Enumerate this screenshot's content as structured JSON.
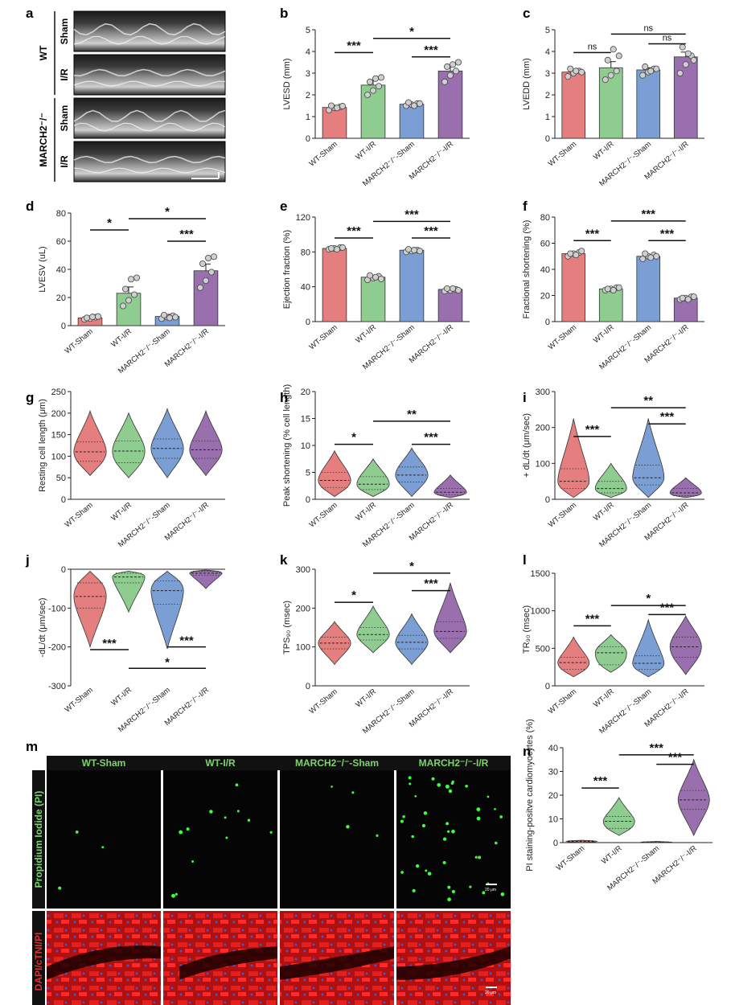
{
  "colors": {
    "sham": "#e57f7f",
    "ir": "#8fcc8f",
    "march_sham": "#7b9fd4",
    "march_ir": "#9a6fae",
    "image_label": "#7cd46d"
  },
  "groups": [
    "WT-Sham",
    "WT-I/R",
    "MARCH2⁻/⁻-Sham",
    "MARCH2⁻/⁻-I/R"
  ],
  "panel_a": {
    "label": "a",
    "row_labels": [
      {
        "group": "WT",
        "sub": "Sham"
      },
      {
        "group": "WT",
        "sub": "I/R"
      },
      {
        "group": "MARCH2⁻/⁻",
        "sub": "Sham"
      },
      {
        "group": "MARCH2⁻/⁻",
        "sub": "I/R"
      }
    ],
    "group_labels": [
      "WT",
      "MARCH2⁻/⁻"
    ]
  },
  "panel_m": {
    "label": "m",
    "column_titles": [
      "WT-Sham",
      "WT-I/R",
      "MARCH2⁻/⁻-Sham",
      "MARCH2⁻/⁻-I/R"
    ],
    "row1_label": "Propidium Iodide (PI)",
    "row2_label": "DAPI/cTNI/PI",
    "scale_text": "20 μm"
  },
  "chart_data": [
    {
      "id": "b",
      "type": "bar",
      "ylabel": "LVESD (mm)",
      "ylim": [
        0,
        5
      ],
      "yticks": [
        0,
        1,
        2,
        3,
        4,
        5
      ],
      "categories": [
        "WT-Sham",
        "WT-I/R",
        "MARCH2⁻/⁻-Sham",
        "MARCH2⁻/⁻-I/R"
      ],
      "values": [
        1.42,
        2.45,
        1.57,
        3.1
      ],
      "errors": [
        0.06,
        0.22,
        0.06,
        0.2
      ],
      "points": [
        [
          1.3,
          1.4,
          1.45,
          1.5,
          1.4,
          1.48
        ],
        [
          2.0,
          2.2,
          2.4,
          2.6,
          2.75,
          2.8
        ],
        [
          1.5,
          1.55,
          1.6,
          1.65,
          1.5,
          1.6
        ],
        [
          2.6,
          2.9,
          3.1,
          3.3,
          3.4,
          3.5
        ]
      ],
      "sig": [
        {
          "from": 0,
          "to": 1,
          "label": "***",
          "y": 3.95
        },
        {
          "from": 1,
          "to": 3,
          "label": "*",
          "y": 4.6
        },
        {
          "from": 2,
          "to": 3,
          "label": "***",
          "y": 3.75
        }
      ]
    },
    {
      "id": "c",
      "type": "bar",
      "ylabel": "LVEDD (mm)",
      "ylim": [
        0,
        5
      ],
      "yticks": [
        0,
        1,
        2,
        3,
        4,
        5
      ],
      "categories": [
        "WT-Sham",
        "WT-I/R",
        "MARCH2⁻/⁻-Sham",
        "MARCH2⁻/⁻-I/R"
      ],
      "values": [
        3.05,
        3.25,
        3.15,
        3.75
      ],
      "errors": [
        0.1,
        0.28,
        0.1,
        0.22
      ],
      "points": [
        [
          2.85,
          3.0,
          3.1,
          3.2,
          3.1,
          3.05
        ],
        [
          2.7,
          2.9,
          3.1,
          3.6,
          4.1,
          3.8
        ],
        [
          2.9,
          3.05,
          3.2,
          3.3,
          3.1,
          3.2
        ],
        [
          3.0,
          3.4,
          3.8,
          4.2,
          3.9,
          3.6
        ]
      ],
      "sig": [
        {
          "from": 0,
          "to": 1,
          "label": "ns",
          "y": 3.95
        },
        {
          "from": 1,
          "to": 3,
          "label": "ns",
          "y": 4.8
        },
        {
          "from": 2,
          "to": 3,
          "label": "ns",
          "y": 4.35
        }
      ]
    },
    {
      "id": "d",
      "type": "bar",
      "ylabel": "LVESV (uL)",
      "ylim": [
        0,
        80
      ],
      "yticks": [
        0,
        20,
        40,
        60,
        80
      ],
      "categories": [
        "WT-Sham",
        "WT-I/R",
        "MARCH2⁻/⁻-Sham",
        "MARCH2⁻/⁻-I/R"
      ],
      "values": [
        5.5,
        23,
        6.5,
        39
      ],
      "errors": [
        1.0,
        4.5,
        1.5,
        4.8
      ],
      "points": [
        [
          4.5,
          5,
          6,
          5.5,
          6.2,
          6.5
        ],
        [
          14,
          18,
          22,
          26,
          33,
          34
        ],
        [
          5,
          6,
          7,
          7.5,
          5.5,
          6
        ],
        [
          27,
          32,
          38,
          44,
          48,
          49
        ]
      ],
      "sig": [
        {
          "from": 0,
          "to": 1,
          "label": "*",
          "y": 68
        },
        {
          "from": 1,
          "to": 3,
          "label": "*",
          "y": 76
        },
        {
          "from": 2,
          "to": 3,
          "label": "***",
          "y": 60
        }
      ]
    },
    {
      "id": "e",
      "type": "bar",
      "ylabel": "Ejection fraction (%)",
      "ylim": [
        0,
        120
      ],
      "yticks": [
        0,
        40,
        80,
        120
      ],
      "categories": [
        "WT-Sham",
        "WT-I/R",
        "MARCH2⁻/⁻-Sham",
        "MARCH2⁻/⁻-I/R"
      ],
      "values": [
        84,
        51,
        82,
        37
      ],
      "errors": [
        1,
        2,
        1,
        1.5
      ],
      "points": [
        [
          83,
          84,
          85,
          84,
          83,
          85
        ],
        [
          48,
          50,
          52,
          53,
          51,
          49
        ],
        [
          80,
          81,
          82,
          83,
          82,
          81
        ],
        [
          35,
          36,
          37,
          38,
          38,
          36
        ]
      ],
      "sig": [
        {
          "from": 0,
          "to": 1,
          "label": "***",
          "y": 96
        },
        {
          "from": 1,
          "to": 3,
          "label": "***",
          "y": 115
        },
        {
          "from": 2,
          "to": 3,
          "label": "***",
          "y": 96
        }
      ]
    },
    {
      "id": "f",
      "type": "bar",
      "ylabel": "Fractional shortening (%)",
      "ylim": [
        0,
        80
      ],
      "yticks": [
        0,
        20,
        40,
        60,
        80
      ],
      "categories": [
        "WT-Sham",
        "WT-I/R",
        "MARCH2⁻/⁻-Sham",
        "MARCH2⁻/⁻-I/R"
      ],
      "values": [
        52,
        25,
        50,
        18
      ],
      "errors": [
        1,
        1,
        1,
        1
      ],
      "points": [
        [
          50,
          52,
          53,
          52,
          51,
          54
        ],
        [
          24,
          25,
          26,
          25,
          24,
          26
        ],
        [
          48,
          50,
          51,
          52,
          49,
          50
        ],
        [
          17,
          18,
          19,
          18,
          17,
          19
        ]
      ],
      "sig": [
        {
          "from": 0,
          "to": 1,
          "label": "***",
          "y": 62
        },
        {
          "from": 1,
          "to": 3,
          "label": "***",
          "y": 77
        },
        {
          "from": 2,
          "to": 3,
          "label": "***",
          "y": 62
        }
      ]
    },
    {
      "id": "g",
      "type": "violin",
      "ylabel": "Resting cell length (μm)",
      "ylim": [
        0,
        250
      ],
      "yticks": [
        0,
        50,
        100,
        150,
        200,
        250
      ],
      "categories": [
        "WT-Sham",
        "WT-I/R",
        "MARCH2⁻/⁻-Sham",
        "MARCH2⁻/⁻-I/R"
      ],
      "ranges": [
        [
          55,
          205
        ],
        [
          50,
          200
        ],
        [
          50,
          210
        ],
        [
          55,
          205
        ]
      ],
      "medians": [
        110,
        112,
        118,
        115
      ],
      "q1": [
        88,
        85,
        95,
        95
      ],
      "q3": [
        133,
        135,
        140,
        135
      ],
      "sig": []
    },
    {
      "id": "h",
      "type": "violin",
      "ylabel": "Peak shortening (% cell length)",
      "ylim": [
        0,
        20
      ],
      "yticks": [
        0,
        5,
        10,
        15,
        20
      ],
      "categories": [
        "WT-Sham",
        "WT-I/R",
        "MARCH2⁻/⁻-Sham",
        "MARCH2⁻/⁻-I/R"
      ],
      "ranges": [
        [
          0.5,
          9
        ],
        [
          0.5,
          7.5
        ],
        [
          0.5,
          9.5
        ],
        [
          0.3,
          4.5
        ]
      ],
      "medians": [
        3.5,
        2.8,
        4.5,
        1.3
      ],
      "q1": [
        2.2,
        1.8,
        3.2,
        0.8
      ],
      "q3": [
        5,
        4.2,
        6,
        2
      ],
      "sig": [
        {
          "from": 0,
          "to": 1,
          "label": "*",
          "y": 10.2
        },
        {
          "from": 1,
          "to": 3,
          "label": "**",
          "y": 14.5
        },
        {
          "from": 2,
          "to": 3,
          "label": "***",
          "y": 10.2
        }
      ]
    },
    {
      "id": "i",
      "type": "violin",
      "ylabel": "+ dL/dt (μm/sec)",
      "ylim": [
        0,
        300
      ],
      "yticks": [
        0,
        100,
        200,
        300
      ],
      "categories": [
        "WT-Sham",
        "WT-I/R",
        "MARCH2⁻/⁻-Sham",
        "MARCH2⁻/⁻-I/R"
      ],
      "ranges": [
        [
          5,
          225
        ],
        [
          5,
          100
        ],
        [
          5,
          225
        ],
        [
          5,
          60
        ]
      ],
      "medians": [
        50,
        30,
        60,
        18
      ],
      "q1": [
        30,
        18,
        40,
        10
      ],
      "q3": [
        85,
        50,
        95,
        30
      ],
      "sig": [
        {
          "from": 0,
          "to": 1,
          "label": "***",
          "y": 175
        },
        {
          "from": 1,
          "to": 3,
          "label": "**",
          "y": 255
        },
        {
          "from": 2,
          "to": 3,
          "label": "***",
          "y": 210
        }
      ]
    },
    {
      "id": "j",
      "type": "violin",
      "ylabel": "-dL/dt (μm/sec)",
      "ylim": [
        -300,
        0
      ],
      "yticks": [
        0,
        -100,
        -200,
        -300
      ],
      "categories": [
        "WT-Sham",
        "WT-I/R",
        "MARCH2⁻/⁻-Sham",
        "MARCH2⁻/⁻-I/R"
      ],
      "ranges": [
        [
          -200,
          -5
        ],
        [
          -110,
          -5
        ],
        [
          -205,
          -5
        ],
        [
          -50,
          -2
        ]
      ],
      "medians": [
        -70,
        -20,
        -55,
        -10
      ],
      "q1": [
        -100,
        -35,
        -90,
        -15
      ],
      "q3": [
        -35,
        -10,
        -30,
        -5
      ],
      "sig": [
        {
          "from": 0,
          "to": 1,
          "label": "***",
          "y": -207,
          "below": true
        },
        {
          "from": 2,
          "to": 3,
          "label": "***",
          "y": -200,
          "below": true
        },
        {
          "from": 1,
          "to": 3,
          "label": "*",
          "y": -255,
          "below": true
        }
      ]
    },
    {
      "id": "k",
      "type": "violin",
      "ylabel": "TPS₉₀ (msec)",
      "ylim": [
        0,
        300
      ],
      "yticks": [
        0,
        100,
        200,
        300
      ],
      "categories": [
        "WT-Sham",
        "WT-I/R",
        "MARCH2⁻/⁻-Sham",
        "MARCH2⁻/⁻-I/R"
      ],
      "ranges": [
        [
          55,
          165
        ],
        [
          85,
          205
        ],
        [
          55,
          185
        ],
        [
          85,
          265
        ]
      ],
      "medians": [
        110,
        132,
        112,
        140
      ],
      "q1": [
        95,
        118,
        95,
        122
      ],
      "q3": [
        125,
        150,
        130,
        165
      ],
      "sig": [
        {
          "from": 0,
          "to": 1,
          "label": "*",
          "y": 215
        },
        {
          "from": 1,
          "to": 3,
          "label": "*",
          "y": 290
        },
        {
          "from": 2,
          "to": 3,
          "label": "***",
          "y": 245
        }
      ]
    },
    {
      "id": "l",
      "type": "violin",
      "ylabel": "TR₉₀ (msec)",
      "ylim": [
        0,
        1500
      ],
      "yticks": [
        0,
        500,
        1000,
        1500
      ],
      "categories": [
        "WT-Sham",
        "WT-I/R",
        "MARCH2⁻/⁻-Sham",
        "MARCH2⁻/⁻-I/R"
      ],
      "ranges": [
        [
          120,
          650
        ],
        [
          180,
          680
        ],
        [
          120,
          880
        ],
        [
          150,
          930
        ]
      ],
      "medians": [
        310,
        440,
        300,
        520
      ],
      "q1": [
        220,
        280,
        220,
        380
      ],
      "q3": [
        380,
        520,
        400,
        650
      ],
      "sig": [
        {
          "from": 0,
          "to": 1,
          "label": "***",
          "y": 800
        },
        {
          "from": 1,
          "to": 3,
          "label": "*",
          "y": 1070
        },
        {
          "from": 2,
          "to": 3,
          "label": "***",
          "y": 950
        }
      ]
    },
    {
      "id": "n",
      "type": "violin",
      "ylabel": "PI staining-positve cardiomyocytes (%)",
      "ylim": [
        0,
        40
      ],
      "yticks": [
        0,
        10,
        20,
        30,
        40
      ],
      "categories": [
        "WT-Sham",
        "WT-I/R",
        "MARCH2⁻/⁻-Sham",
        "MARCH2⁻/⁻-I/R"
      ],
      "ranges": [
        [
          0,
          1
        ],
        [
          3,
          19
        ],
        [
          0,
          0.5
        ],
        [
          3,
          35
        ]
      ],
      "medians": [
        0.5,
        9,
        0.2,
        18
      ],
      "q1": [
        0.2,
        6,
        0.1,
        14
      ],
      "q3": [
        0.8,
        11,
        0.3,
        22
      ],
      "sig": [
        {
          "from": 0,
          "to": 1,
          "label": "***",
          "y": 23
        },
        {
          "from": 1,
          "to": 3,
          "label": "***",
          "y": 37
        },
        {
          "from": 2,
          "to": 3,
          "label": "***",
          "y": 33
        }
      ]
    }
  ],
  "panel_labels": {
    "b": "b",
    "c": "c",
    "d": "d",
    "e": "e",
    "f": "f",
    "g": "g",
    "h": "h",
    "i": "i",
    "j": "j",
    "k": "k",
    "l": "l",
    "n": "n"
  }
}
